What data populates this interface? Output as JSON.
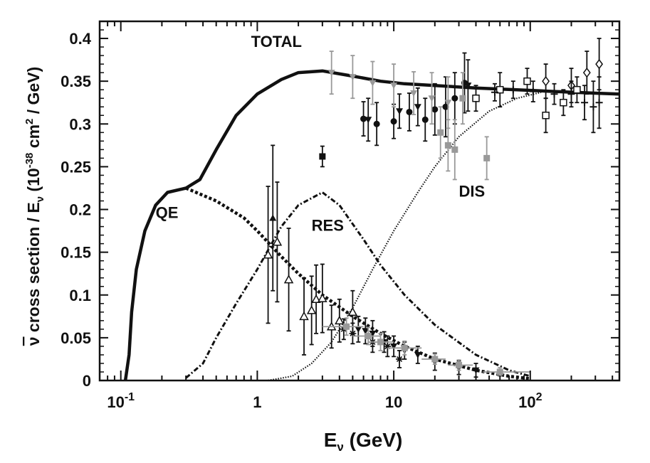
{
  "chart_data": {
    "type": "line",
    "xscale": "log",
    "xlim": [
      0.07,
      450
    ],
    "ylim": [
      0,
      0.42
    ],
    "grid": false,
    "xlabel": {
      "main": "E",
      "sub": "ν",
      "unit": " (GeV)"
    },
    "ylabel": {
      "bar": "ν",
      "text1": " cross section / E",
      "sub": "ν",
      "text2": " (10",
      "sup": "-38",
      "text3": " cm",
      "sup2": "2",
      "text4": " / GeV)"
    },
    "x_ticks": [
      {
        "value": 0.1,
        "base": "10",
        "exp": "-1"
      },
      {
        "value": 1,
        "label": "1"
      },
      {
        "value": 10,
        "label": "10"
      },
      {
        "value": 100,
        "base": "10",
        "exp": "2"
      }
    ],
    "y_ticks": [
      {
        "value": 0,
        "label": "0"
      },
      {
        "value": 0.05,
        "label": "0.05"
      },
      {
        "value": 0.1,
        "label": "0.1"
      },
      {
        "value": 0.15,
        "label": "0.15"
      },
      {
        "value": 0.2,
        "label": "0.2"
      },
      {
        "value": 0.25,
        "label": "0.25"
      },
      {
        "value": 0.3,
        "label": "0.3"
      },
      {
        "value": 0.35,
        "label": "0.35"
      },
      {
        "value": 0.4,
        "label": "0.4"
      }
    ],
    "annotations": [
      {
        "text": "TOTAL",
        "x": 0.9,
        "y": 0.39
      },
      {
        "text": "QE",
        "x": 0.18,
        "y": 0.19
      },
      {
        "text": "RES",
        "x": 2.5,
        "y": 0.175
      },
      {
        "text": "DIS",
        "x": 30,
        "y": 0.215
      }
    ],
    "series": [
      {
        "name": "TOTAL",
        "style": "solid",
        "points": [
          [
            0.108,
            0
          ],
          [
            0.115,
            0.03
          ],
          [
            0.12,
            0.08
          ],
          [
            0.13,
            0.13
          ],
          [
            0.15,
            0.175
          ],
          [
            0.18,
            0.205
          ],
          [
            0.22,
            0.22
          ],
          [
            0.3,
            0.225
          ],
          [
            0.38,
            0.235
          ],
          [
            0.5,
            0.27
          ],
          [
            0.7,
            0.31
          ],
          [
            1,
            0.335
          ],
          [
            1.5,
            0.352
          ],
          [
            2,
            0.36
          ],
          [
            3,
            0.362
          ],
          [
            5,
            0.356
          ],
          [
            8,
            0.35
          ],
          [
            12,
            0.347
          ],
          [
            20,
            0.345
          ],
          [
            40,
            0.342
          ],
          [
            80,
            0.34
          ],
          [
            150,
            0.338
          ],
          [
            300,
            0.336
          ],
          [
            450,
            0.335
          ]
        ]
      },
      {
        "name": "QE",
        "style": "dashed",
        "points": [
          [
            0.3,
            0.225
          ],
          [
            0.5,
            0.21
          ],
          [
            0.8,
            0.19
          ],
          [
            1,
            0.175
          ],
          [
            1.5,
            0.145
          ],
          [
            2,
            0.125
          ],
          [
            3,
            0.1
          ],
          [
            5,
            0.075
          ],
          [
            8,
            0.055
          ],
          [
            12,
            0.04
          ],
          [
            20,
            0.025
          ],
          [
            40,
            0.012
          ],
          [
            70,
            0.005
          ],
          [
            100,
            0.002
          ]
        ]
      },
      {
        "name": "RES",
        "style": "dashdot",
        "points": [
          [
            0.3,
            0.003
          ],
          [
            0.4,
            0.02
          ],
          [
            0.5,
            0.05
          ],
          [
            0.7,
            0.09
          ],
          [
            1,
            0.13
          ],
          [
            1.5,
            0.18
          ],
          [
            2,
            0.205
          ],
          [
            3,
            0.22
          ],
          [
            4,
            0.205
          ],
          [
            6,
            0.165
          ],
          [
            8,
            0.135
          ],
          [
            12,
            0.1
          ],
          [
            20,
            0.065
          ],
          [
            40,
            0.03
          ],
          [
            70,
            0.012
          ],
          [
            100,
            0.005
          ]
        ]
      },
      {
        "name": "DIS",
        "style": "dotted",
        "points": [
          [
            1.2,
            0
          ],
          [
            1.8,
            0.005
          ],
          [
            2.5,
            0.02
          ],
          [
            3.5,
            0.045
          ],
          [
            5,
            0.085
          ],
          [
            7,
            0.13
          ],
          [
            10,
            0.175
          ],
          [
            15,
            0.22
          ],
          [
            20,
            0.25
          ],
          [
            30,
            0.285
          ],
          [
            50,
            0.315
          ],
          [
            80,
            0.33
          ],
          [
            120,
            0.337
          ]
        ]
      }
    ],
    "data_sets": [
      {
        "marker": "filled-circle",
        "color": "#111111",
        "points": [
          [
            6,
            0.306,
            0.02
          ],
          [
            7.5,
            0.3,
            0.025
          ],
          [
            10,
            0.303,
            0.02
          ],
          [
            13,
            0.314,
            0.022
          ],
          [
            17,
            0.305,
            0.025
          ],
          [
            20,
            0.317,
            0.03
          ],
          [
            24,
            0.32,
            0.035
          ],
          [
            28,
            0.33,
            0.03
          ],
          [
            33,
            0.348,
            0.035
          ]
        ]
      },
      {
        "marker": "filled-triangle-down",
        "color": "#111111",
        "points": [
          [
            6.5,
            0.305,
            0.025
          ],
          [
            11,
            0.315,
            0.02
          ],
          [
            15,
            0.32,
            0.022
          ],
          [
            35,
            0.345,
            0.03
          ]
        ]
      },
      {
        "marker": "gray-triangle-down",
        "color": "#999999",
        "points": [
          [
            3.5,
            0.36,
            0.025
          ],
          [
            5,
            0.355,
            0.025
          ],
          [
            7,
            0.348,
            0.025
          ],
          [
            10,
            0.345,
            0.025
          ],
          [
            14,
            0.336,
            0.025
          ],
          [
            19,
            0.33,
            0.03
          ],
          [
            25,
            0.325,
            0.03
          ]
        ]
      },
      {
        "marker": "gray-square",
        "color": "#999999",
        "points": [
          [
            22,
            0.29,
            0.03
          ],
          [
            25,
            0.275,
            0.03
          ],
          [
            28,
            0.27,
            0.035
          ],
          [
            32,
            0.33,
            0.03
          ],
          [
            48,
            0.26,
            0.025
          ]
        ]
      },
      {
        "marker": "filled-square",
        "color": "#111111",
        "points": [
          [
            3,
            0.262,
            0.012
          ]
        ]
      },
      {
        "marker": "open-square",
        "color": "#111111",
        "points": [
          [
            40,
            0.33,
            0.015
          ],
          [
            60,
            0.34,
            0.02
          ],
          [
            95,
            0.35,
            0.015
          ],
          [
            130,
            0.31,
            0.02
          ],
          [
            175,
            0.325,
            0.015
          ],
          [
            220,
            0.34,
            0.015
          ]
        ]
      },
      {
        "marker": "open-diamond",
        "color": "#111111",
        "points": [
          [
            130,
            0.35,
            0.02
          ],
          [
            200,
            0.345,
            0.02
          ],
          [
            260,
            0.36,
            0.025
          ],
          [
            320,
            0.37,
            0.03
          ]
        ]
      },
      {
        "marker": "plus",
        "color": "#111111",
        "points": [
          [
            55,
            0.337,
            0.01
          ],
          [
            75,
            0.34,
            0.01
          ],
          [
            105,
            0.338,
            0.012
          ],
          [
            150,
            0.335,
            0.012
          ],
          [
            200,
            0.335,
            0.015
          ],
          [
            250,
            0.325,
            0.02
          ],
          [
            290,
            0.32,
            0.03
          ],
          [
            320,
            0.325,
            0.03
          ]
        ]
      },
      {
        "marker": "filled-triangle-up",
        "color": "#111111",
        "points": [
          [
            1.3,
            0.19,
            0.085
          ]
        ]
      },
      {
        "marker": "open-triangle-up",
        "color": "#111111",
        "points": [
          [
            1.2,
            0.147,
            0.08
          ],
          [
            1.4,
            0.162,
            0.07
          ],
          [
            1.7,
            0.118,
            0.06
          ],
          [
            2.2,
            0.075,
            0.045
          ],
          [
            2.5,
            0.082,
            0.04
          ],
          [
            2.7,
            0.095,
            0.04
          ],
          [
            3,
            0.096,
            0.04
          ],
          [
            3.5,
            0.063,
            0.025
          ],
          [
            4,
            0.07,
            0.025
          ],
          [
            5,
            0.08,
            0.025
          ]
        ]
      },
      {
        "marker": "filled-triangle-down",
        "color": "#111111",
        "points": [
          [
            5.5,
            0.06,
            0.015
          ],
          [
            6.2,
            0.058,
            0.015
          ],
          [
            7,
            0.055,
            0.015
          ],
          [
            8.5,
            0.045,
            0.012
          ],
          [
            10,
            0.04,
            0.012
          ],
          [
            12,
            0.035,
            0.01
          ],
          [
            15,
            0.03,
            0.01
          ],
          [
            20,
            0.022,
            0.01
          ],
          [
            30,
            0.015,
            0.008
          ],
          [
            40,
            0.012,
            0.008
          ]
        ]
      },
      {
        "marker": "star",
        "color": "#111111",
        "points": [
          [
            4.3,
            0.06,
            0.012
          ],
          [
            5,
            0.055,
            0.012
          ],
          [
            7,
            0.045,
            0.012
          ],
          [
            9,
            0.04,
            0.012
          ],
          [
            11,
            0.025,
            0.01
          ]
        ]
      },
      {
        "marker": "gray-square-xbar",
        "color": "#999999",
        "points": [
          [
            4.5,
            0.063,
            0.01,
            3,
            6
          ],
          [
            6.5,
            0.052,
            0.01,
            5,
            8
          ],
          [
            8,
            0.045,
            0.01,
            6.5,
            10
          ],
          [
            12,
            0.038,
            0.008,
            9,
            16
          ],
          [
            20,
            0.025,
            0.006,
            16,
            24
          ],
          [
            30,
            0.018,
            0.006,
            25,
            38
          ],
          [
            60,
            0.01,
            0.005,
            45,
            100
          ]
        ]
      }
    ]
  }
}
